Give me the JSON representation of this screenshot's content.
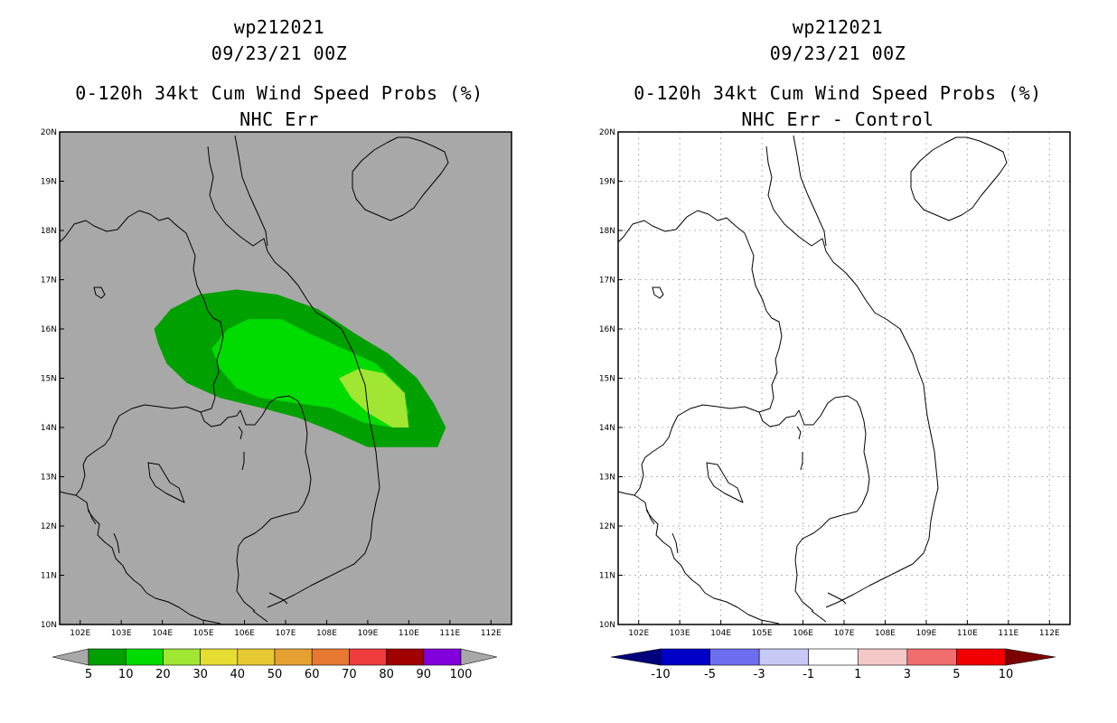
{
  "charts": [
    {
      "storm_id": "wp212021",
      "datetime": "09/23/21 00Z",
      "title": "0-120h 34kt Cum Wind Speed Probs (%)",
      "subtitle": "NHC Err",
      "background": "#a8a8a8",
      "grid": false
    },
    {
      "storm_id": "wp212021",
      "datetime": "09/23/21 00Z",
      "title": "0-120h 34kt Cum Wind Speed Probs (%)",
      "subtitle": "NHC Err - Control",
      "background": "#ffffff",
      "grid": true
    }
  ],
  "chart_data": [
    {
      "type": "heatmap",
      "title": "0-120h 34kt Cum Wind Speed Probs (%)",
      "subtitle": "NHC Err",
      "lon_range": [
        101.5,
        112.5
      ],
      "lat_range": [
        10,
        20
      ],
      "x_ticks": [
        "102E",
        "103E",
        "104E",
        "105E",
        "106E",
        "107E",
        "108E",
        "109E",
        "110E",
        "111E",
        "112E"
      ],
      "y_ticks": [
        "20N",
        "19N",
        "18N",
        "17N",
        "16N",
        "15N",
        "14N",
        "13N",
        "12N",
        "11N",
        "10N"
      ],
      "contours": [
        {
          "level": ">=5",
          "color": "#00a000",
          "polygon": [
            [
              103.8,
              16.0
            ],
            [
              104.2,
              16.4
            ],
            [
              104.9,
              16.7
            ],
            [
              105.8,
              16.8
            ],
            [
              106.8,
              16.7
            ],
            [
              107.8,
              16.4
            ],
            [
              108.7,
              15.9
            ],
            [
              109.5,
              15.5
            ],
            [
              110.2,
              15.0
            ],
            [
              110.6,
              14.5
            ],
            [
              110.9,
              14.0
            ],
            [
              110.7,
              13.6
            ],
            [
              109.9,
              13.6
            ],
            [
              109.0,
              13.6
            ],
            [
              108.2,
              13.9
            ],
            [
              107.3,
              14.2
            ],
            [
              106.4,
              14.4
            ],
            [
              105.4,
              14.6
            ],
            [
              104.6,
              14.9
            ],
            [
              104.1,
              15.3
            ],
            [
              103.9,
              15.7
            ]
          ]
        },
        {
          "level": ">=10",
          "color": "#00dc00",
          "polygon": [
            [
              105.2,
              15.6
            ],
            [
              105.6,
              16.0
            ],
            [
              106.1,
              16.2
            ],
            [
              106.9,
              16.2
            ],
            [
              107.6,
              15.9
            ],
            [
              108.4,
              15.6
            ],
            [
              109.2,
              15.3
            ],
            [
              109.8,
              14.8
            ],
            [
              110.0,
              14.3
            ],
            [
              109.6,
              14.0
            ],
            [
              108.9,
              14.1
            ],
            [
              108.1,
              14.4
            ],
            [
              107.2,
              14.5
            ],
            [
              106.4,
              14.6
            ],
            [
              105.8,
              14.8
            ],
            [
              105.4,
              15.2
            ]
          ]
        },
        {
          "level": ">=20",
          "color": "#a0e632",
          "polygon": [
            [
              108.3,
              15.0
            ],
            [
              108.8,
              15.2
            ],
            [
              109.4,
              15.1
            ],
            [
              109.9,
              14.7
            ],
            [
              110.0,
              14.0
            ],
            [
              109.6,
              14.0
            ],
            [
              109.0,
              14.3
            ],
            [
              108.6,
              14.6
            ]
          ]
        }
      ],
      "colorbar": {
        "labels": [
          "5",
          "10",
          "20",
          "30",
          "40",
          "50",
          "60",
          "70",
          "80",
          "90",
          "100"
        ],
        "colors": [
          "#00a000",
          "#00dc00",
          "#a0e632",
          "#e6dc32",
          "#e6c832",
          "#e6a032",
          "#e67832",
          "#f03c3c",
          "#a00000",
          "#8200dc"
        ],
        "under_color": "#a8a8a8",
        "over_color": "#a8a8a8"
      }
    },
    {
      "type": "heatmap",
      "title": "0-120h 34kt Cum Wind Speed Probs (%)",
      "subtitle": "NHC Err - Control",
      "lon_range": [
        101.5,
        112.5
      ],
      "lat_range": [
        10,
        20
      ],
      "x_ticks": [
        "102E",
        "103E",
        "104E",
        "105E",
        "106E",
        "107E",
        "108E",
        "109E",
        "110E",
        "111E",
        "112E"
      ],
      "y_ticks": [
        "20N",
        "19N",
        "18N",
        "17N",
        "16N",
        "15N",
        "14N",
        "13N",
        "12N",
        "11N",
        "10N"
      ],
      "contours": [],
      "colorbar": {
        "labels": [
          "-10",
          "-5",
          "-3",
          "-1",
          "1",
          "3",
          "5",
          "10"
        ],
        "colors": [
          "#0000c8",
          "#6e6ef0",
          "#c8c8f5",
          "#ffffff",
          "#f5c8c8",
          "#f06e6e",
          "#f00000"
        ],
        "under_color": "#00007d",
        "over_color": "#7d0000"
      }
    }
  ]
}
